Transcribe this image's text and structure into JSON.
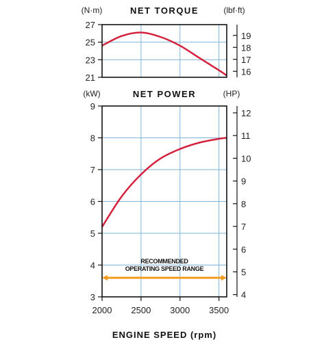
{
  "chart_data": [
    {
      "type": "line",
      "title": "NET TORQUE",
      "ylabel_left": "(N·m)",
      "ylabel_right": "(lbf·ft)",
      "x": [
        2000,
        2250,
        2500,
        2750,
        3000,
        3250,
        3500,
        3600
      ],
      "series": [
        {
          "values": [
            24.6,
            25.7,
            26.1,
            25.6,
            24.6,
            23.2,
            21.8,
            21.2
          ]
        }
      ],
      "xlim": [
        2000,
        3600
      ],
      "ylim": [
        21,
        27
      ],
      "yticks": [
        21,
        23,
        25,
        27
      ],
      "ylim_right": [
        15.5,
        19.9
      ],
      "yticks_right": [
        16,
        17,
        18,
        19
      ],
      "grid": true
    },
    {
      "type": "line",
      "title": "NET POWER",
      "ylabel_left": "(kW)",
      "ylabel_right": "(HP)",
      "x": [
        2000,
        2250,
        2500,
        2750,
        3000,
        3250,
        3500,
        3600
      ],
      "series": [
        {
          "values": [
            5.2,
            6.15,
            6.85,
            7.35,
            7.65,
            7.85,
            7.97,
            8.0
          ]
        }
      ],
      "xlim": [
        2000,
        3600
      ],
      "xticks": [
        2000,
        2500,
        3000,
        3500
      ],
      "xlabel": "ENGINE SPEED (rpm)",
      "ylim": [
        3,
        9
      ],
      "yticks": [
        3,
        4,
        5,
        6,
        7,
        8,
        9
      ],
      "ylim_right": [
        3.9,
        12.3
      ],
      "yticks_right": [
        4,
        5,
        6,
        7,
        8,
        9,
        10,
        11,
        12
      ],
      "grid": true,
      "annotation": {
        "text_lines": [
          "RECOMMENDED",
          "OPERATING SPEED RANGE"
        ],
        "range": [
          2000,
          3600
        ],
        "y": 3.6
      }
    }
  ],
  "colors": {
    "curve": "#d4213d",
    "grid": "#7fb3d5",
    "arrow": "#f39a1f",
    "axis": "#111111"
  }
}
